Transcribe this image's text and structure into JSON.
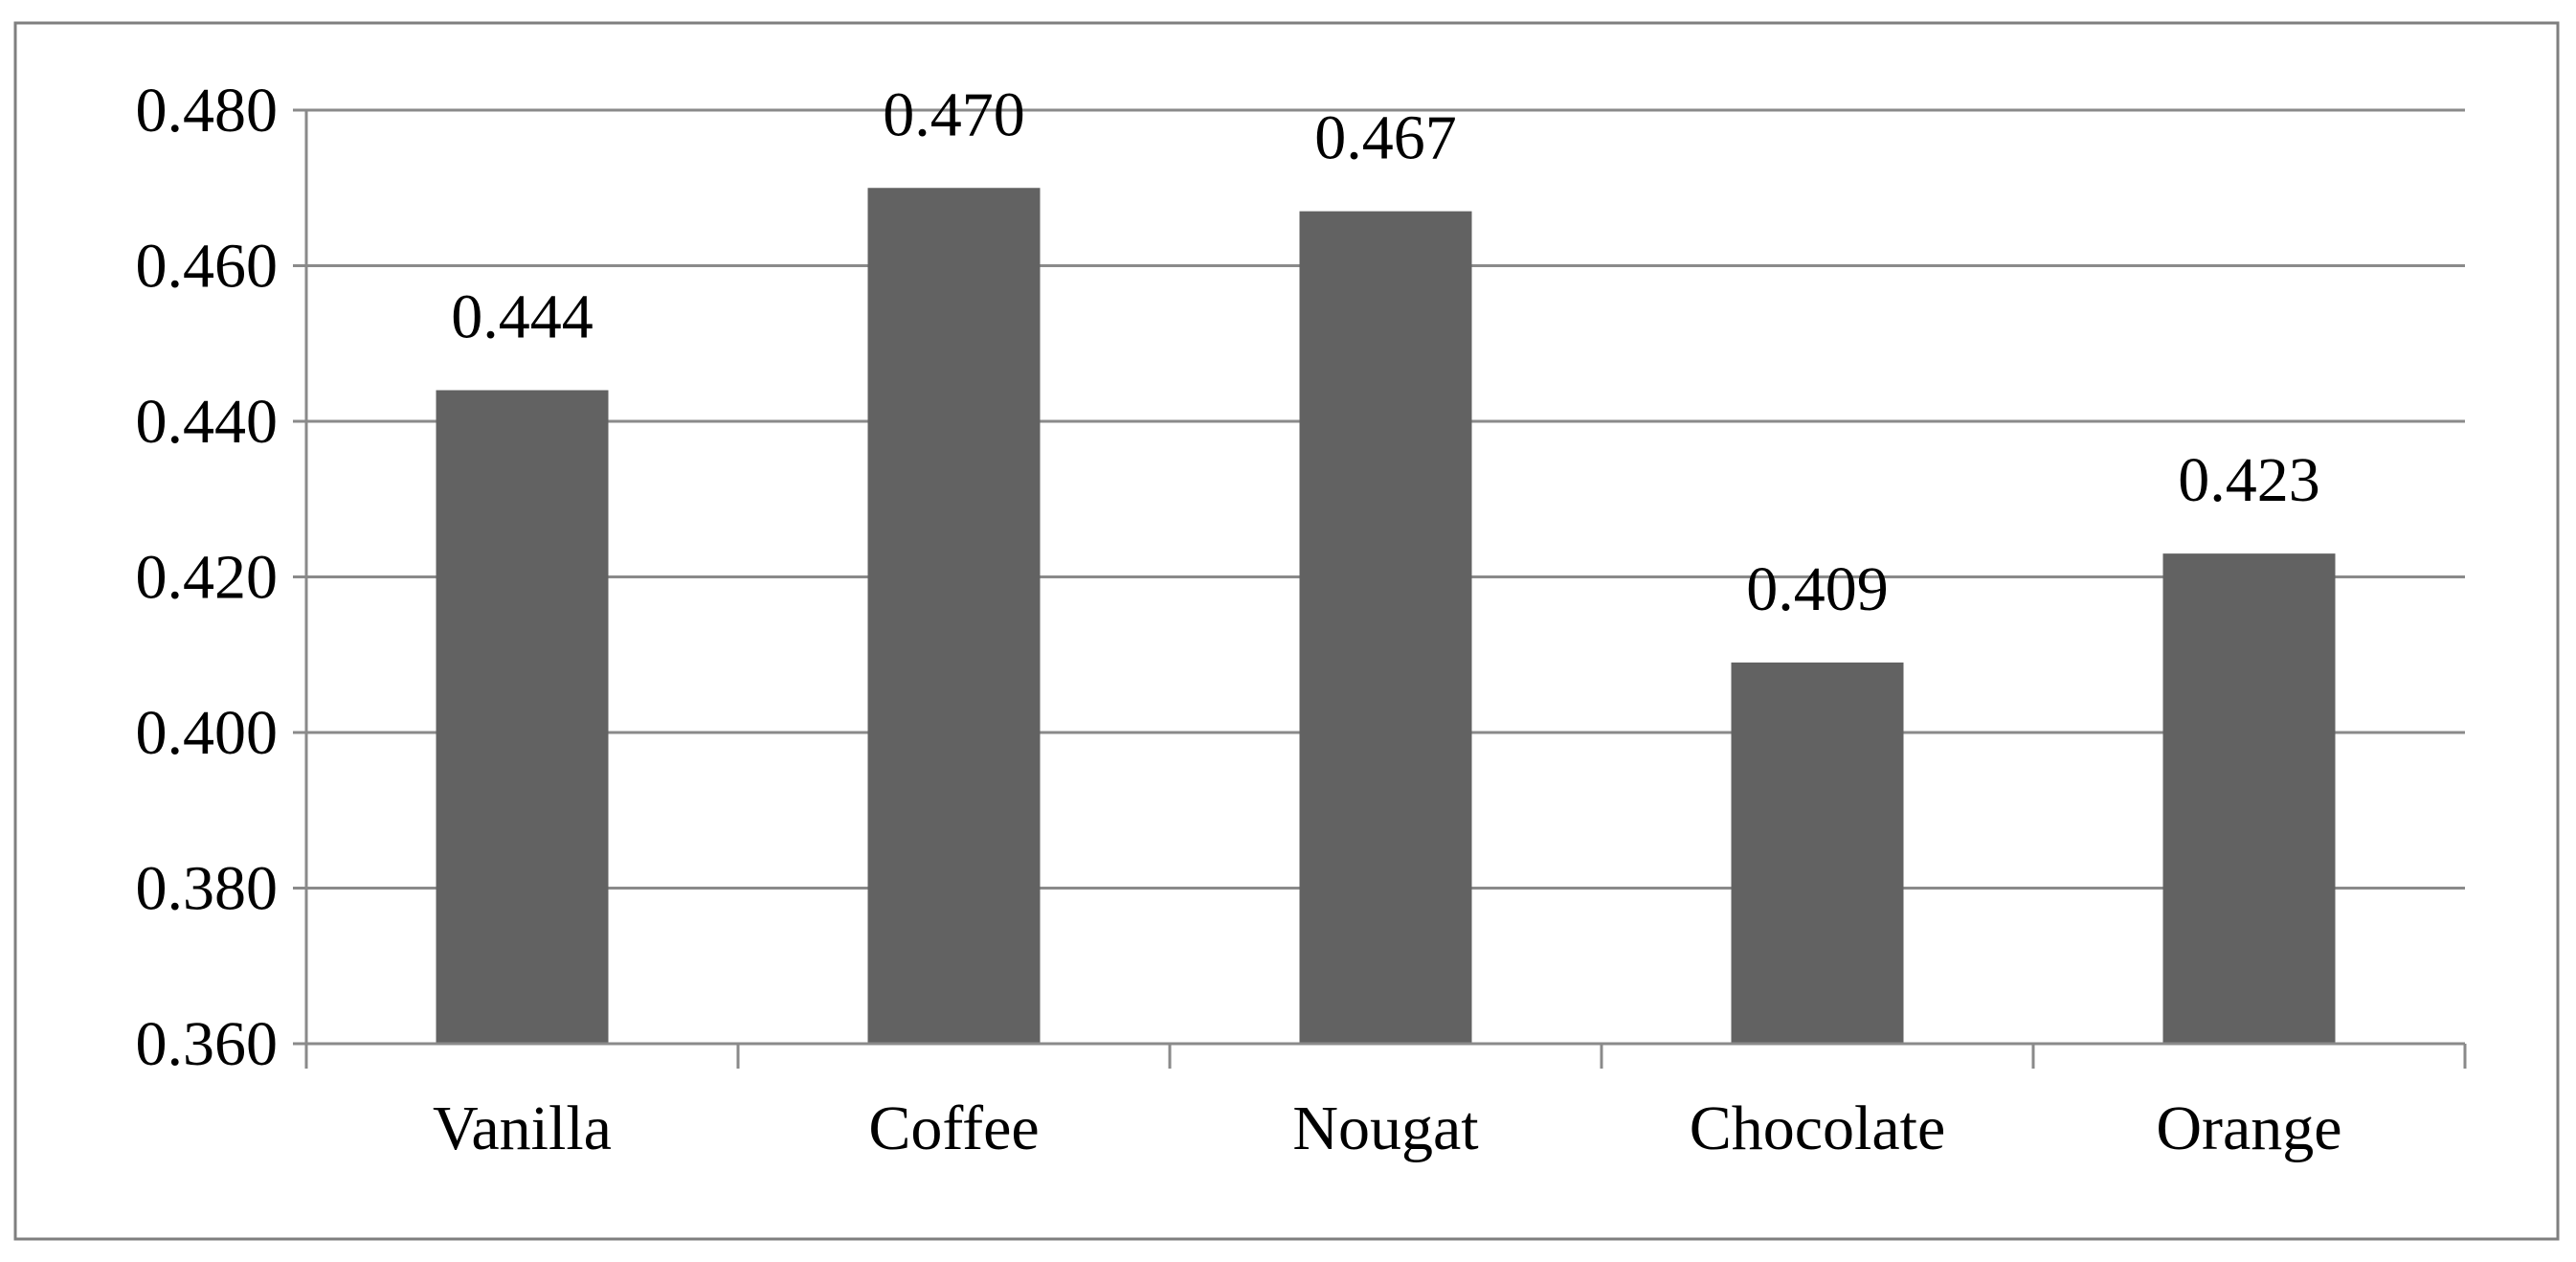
{
  "chart_data": {
    "type": "bar",
    "title": "",
    "xlabel": "",
    "ylabel": "",
    "categories": [
      "Vanilla",
      "Coffee",
      "Nougat",
      "Chocolate",
      "Orange"
    ],
    "values": [
      0.444,
      0.47,
      0.467,
      0.409,
      0.423
    ],
    "data_labels": [
      "0.444",
      "0.470",
      "0.467",
      "0.409",
      "0.423"
    ],
    "ylim": [
      0.36,
      0.48
    ],
    "yticks": [
      0.36,
      0.38,
      0.4,
      0.42,
      0.44,
      0.46,
      0.48
    ],
    "ytick_labels": [
      "0.360",
      "0.380",
      "0.400",
      "0.420",
      "0.440",
      "0.460",
      "0.480"
    ],
    "grid": true,
    "legend": "none",
    "bar_color": "#626262",
    "grid_color": "#8a8a8a",
    "border_color": "#7f7f7f"
  }
}
